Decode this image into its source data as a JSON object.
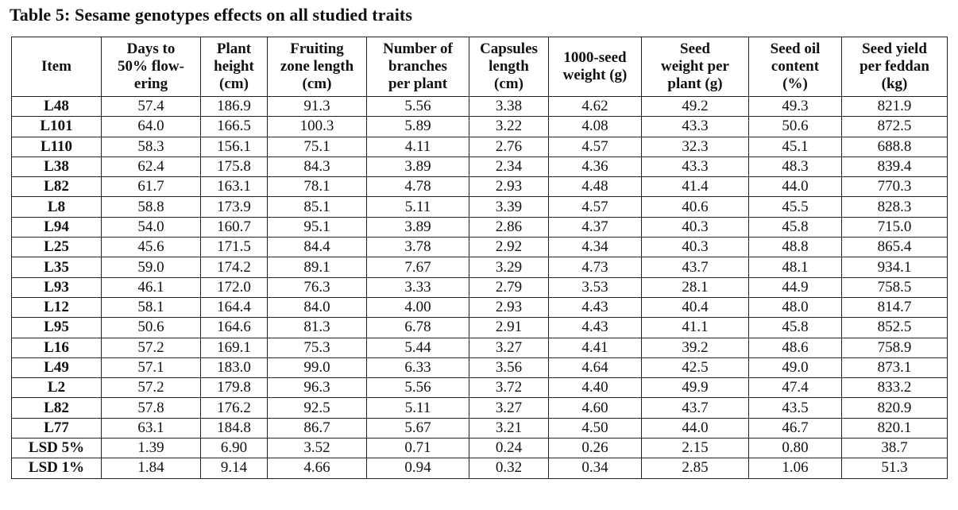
{
  "title": "Table 5: Sesame genotypes effects on all studied traits",
  "headers": [
    [
      "Item"
    ],
    [
      "Days to",
      "50% flow-",
      "ering"
    ],
    [
      "Plant",
      "height",
      "(cm)"
    ],
    [
      "Fruiting",
      "zone length",
      "(cm)"
    ],
    [
      "Number of",
      "branches",
      "per plant"
    ],
    [
      "Capsules",
      "length",
      "(cm)"
    ],
    [
      "1000-seed",
      "weight (g)"
    ],
    [
      "Seed",
      "weight per",
      "plant (g)"
    ],
    [
      "Seed oil",
      "content",
      "(%)"
    ],
    [
      "Seed yield",
      "per feddan",
      "(kg)"
    ]
  ],
  "rows": [
    [
      "L48",
      "57.4",
      "186.9",
      "91.3",
      "5.56",
      "3.38",
      "4.62",
      "49.2",
      "49.3",
      "821.9"
    ],
    [
      "L101",
      "64.0",
      "166.5",
      "100.3",
      "5.89",
      "3.22",
      "4.08",
      "43.3",
      "50.6",
      "872.5"
    ],
    [
      "L110",
      "58.3",
      "156.1",
      "75.1",
      "4.11",
      "2.76",
      "4.57",
      "32.3",
      "45.1",
      "688.8"
    ],
    [
      "L38",
      "62.4",
      "175.8",
      "84.3",
      "3.89",
      "2.34",
      "4.36",
      "43.3",
      "48.3",
      "839.4"
    ],
    [
      "L82",
      "61.7",
      "163.1",
      "78.1",
      "4.78",
      "2.93",
      "4.48",
      "41.4",
      "44.0",
      "770.3"
    ],
    [
      "L8",
      "58.8",
      "173.9",
      "85.1",
      "5.11",
      "3.39",
      "4.57",
      "40.6",
      "45.5",
      "828.3"
    ],
    [
      "L94",
      "54.0",
      "160.7",
      "95.1",
      "3.89",
      "2.86",
      "4.37",
      "40.3",
      "45.8",
      "715.0"
    ],
    [
      "L25",
      "45.6",
      "171.5",
      "84.4",
      "3.78",
      "2.92",
      "4.34",
      "40.3",
      "48.8",
      "865.4"
    ],
    [
      "L35",
      "59.0",
      "174.2",
      "89.1",
      "7.67",
      "3.29",
      "4.73",
      "43.7",
      "48.1",
      "934.1"
    ],
    [
      "L93",
      "46.1",
      "172.0",
      "76.3",
      "3.33",
      "2.79",
      "3.53",
      "28.1",
      "44.9",
      "758.5"
    ],
    [
      "L12",
      "58.1",
      "164.4",
      "84.0",
      "4.00",
      "2.93",
      "4.43",
      "40.4",
      "48.0",
      "814.7"
    ],
    [
      "L95",
      "50.6",
      "164.6",
      "81.3",
      "6.78",
      "2.91",
      "4.43",
      "41.1",
      "45.8",
      "852.5"
    ],
    [
      "L16",
      "57.2",
      "169.1",
      "75.3",
      "5.44",
      "3.27",
      "4.41",
      "39.2",
      "48.6",
      "758.9"
    ],
    [
      "L49",
      "57.1",
      "183.0",
      "99.0",
      "6.33",
      "3.56",
      "4.64",
      "42.5",
      "49.0",
      "873.1"
    ],
    [
      "L2",
      "57.2",
      "179.8",
      "96.3",
      "5.56",
      "3.72",
      "4.40",
      "49.9",
      "47.4",
      "833.2"
    ],
    [
      "L82",
      "57.8",
      "176.2",
      "92.5",
      "5.11",
      "3.27",
      "4.60",
      "43.7",
      "43.5",
      "820.9"
    ],
    [
      "L77",
      "63.1",
      "184.8",
      "86.7",
      "5.67",
      "3.21",
      "4.50",
      "44.0",
      "46.7",
      "820.1"
    ],
    [
      "LSD 5%",
      "1.39",
      "6.90",
      "3.52",
      "0.71",
      "0.24",
      "0.26",
      "2.15",
      "0.80",
      "38.7"
    ],
    [
      "LSD 1%",
      "1.84",
      "9.14",
      "4.66",
      "0.94",
      "0.32",
      "0.34",
      "2.85",
      "1.06",
      "51.3"
    ]
  ]
}
